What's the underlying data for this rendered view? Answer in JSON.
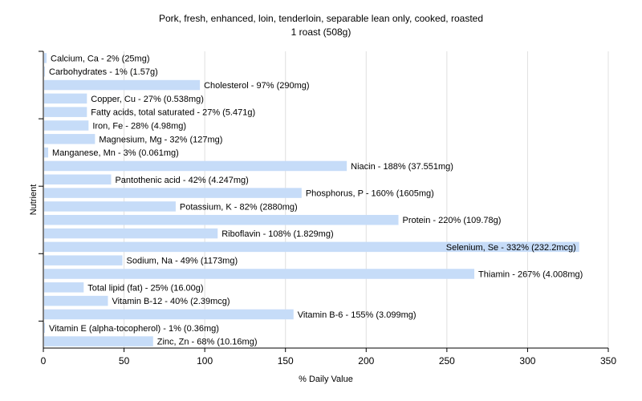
{
  "chart_data": {
    "type": "bar",
    "orientation": "horizontal",
    "title": "Pork, fresh, enhanced, loin, tenderloin, separable lean only, cooked, roasted",
    "subtitle": "1 roast (508g)",
    "xlabel": "% Daily Value",
    "ylabel": "Nutrient",
    "xlim": [
      0,
      350
    ],
    "xticks": [
      0,
      50,
      100,
      150,
      200,
      250,
      300,
      350
    ],
    "grid": true,
    "bar_color": "#c6dcf8",
    "categories": [
      "Calcium, Ca",
      "Carbohydrates",
      "Cholesterol",
      "Copper, Cu",
      "Fatty acids, total saturated",
      "Iron, Fe",
      "Magnesium, Mg",
      "Manganese, Mn",
      "Niacin",
      "Pantothenic acid",
      "Phosphorus, P",
      "Potassium, K",
      "Protein",
      "Riboflavin",
      "Selenium, Se",
      "Sodium, Na",
      "Thiamin",
      "Total lipid (fat)",
      "Vitamin B-12",
      "Vitamin B-6",
      "Vitamin E (alpha-tocopherol)",
      "Zinc, Zn"
    ],
    "values": [
      2,
      1,
      97,
      27,
      27,
      28,
      32,
      3,
      188,
      42,
      160,
      82,
      220,
      108,
      332,
      49,
      267,
      25,
      40,
      155,
      1,
      68
    ],
    "labels": [
      "Calcium, Ca - 2% (25mg)",
      "Carbohydrates - 1% (1.57g)",
      "Cholesterol - 97% (290mg)",
      "Copper, Cu - 27% (0.538mg)",
      "Fatty acids, total saturated - 27% (5.471g)",
      "Iron, Fe - 28% (4.98mg)",
      "Magnesium, Mg - 32% (127mg)",
      "Manganese, Mn - 3% (0.061mg)",
      "Niacin - 188% (37.551mg)",
      "Pantothenic acid - 42% (4.247mg)",
      "Phosphorus, P - 160% (1605mg)",
      "Potassium, K - 82% (2880mg)",
      "Protein - 220% (109.78g)",
      "Riboflavin - 108% (1.829mg)",
      "Selenium, Se - 332% (232.2mcg)",
      "Sodium, Na - 49% (1173mg)",
      "Thiamin - 267% (4.008mg)",
      "Total lipid (fat) - 25% (16.00g)",
      "Vitamin B-12 - 40% (2.39mcg)",
      "Vitamin B-6 - 155% (3.099mg)",
      "Vitamin E (alpha-tocopherol) - 1% (0.36mg)",
      "Zinc, Zn - 68% (10.16mg)"
    ]
  }
}
